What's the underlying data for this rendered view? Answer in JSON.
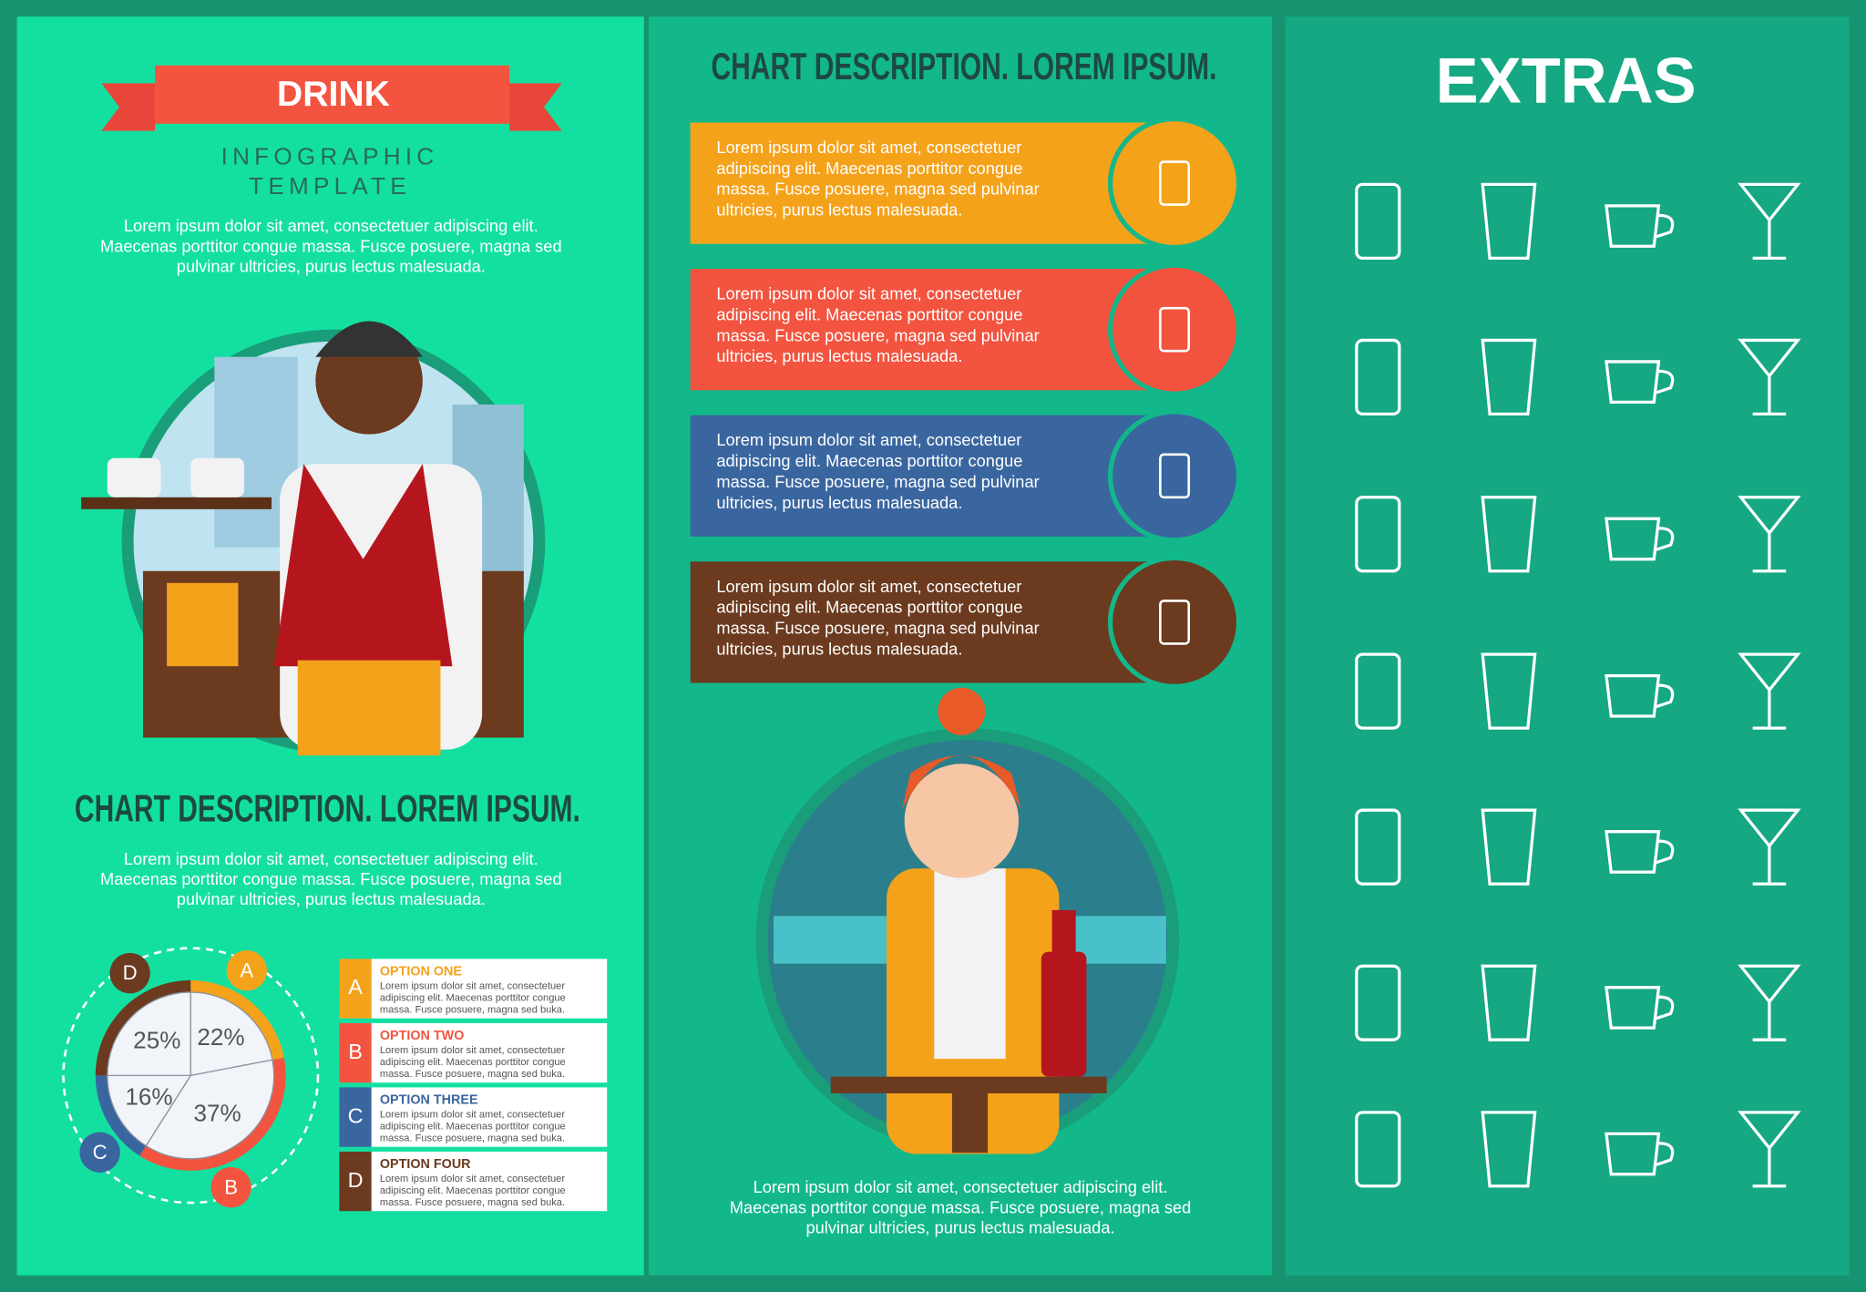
{
  "left": {
    "banner": "DRINK",
    "subtitle": [
      "INFOGRAPHIC",
      "TEMPLATE"
    ],
    "intro": [
      "Lorem ipsum dolor sit amet, consectetuer adipiscing elit.",
      "Maecenas porttitor congue massa. Fusce posuere, magna sed",
      "pulvinar ultricies, purus lectus malesuada."
    ],
    "heading": "CHART DESCRIPTION. LOREM IPSUM.",
    "text": [
      "Lorem ipsum dolor sit amet, consectetuer adipiscing elit.",
      "Maecenas porttitor congue massa. Fusce posuere, magna sed",
      "pulvinar ultricies, purus lectus malesuada."
    ],
    "options": [
      {
        "letter": "A",
        "title": "OPTION ONE",
        "lines": [
          "Lorem ipsum dolor sit amet, consectetuer",
          "adipiscing elit. Maecenas porttitor congue",
          "massa. Fusce posuere, magna sed buka."
        ]
      },
      {
        "letter": "B",
        "title": "OPTION TWO",
        "lines": [
          "Lorem ipsum dolor sit amet, consectetuer",
          "adipiscing elit. Maecenas porttitor congue",
          "massa. Fusce posuere, magna sed buka."
        ]
      },
      {
        "letter": "C",
        "title": "OPTION THREE",
        "lines": [
          "Lorem ipsum dolor sit amet, consectetuer",
          "adipiscing elit. Maecenas porttitor congue",
          "massa. Fusce posuere, magna sed buka."
        ]
      },
      {
        "letter": "D",
        "title": "OPTION FOUR",
        "lines": [
          "Lorem ipsum dolor sit amet, consectetuer",
          "adipiscing elit. Maecenas porttitor congue",
          "massa. Fusce posuere, magna sed buka."
        ]
      }
    ]
  },
  "chart_data": {
    "type": "pie",
    "categories": [
      "A",
      "B",
      "C",
      "D"
    ],
    "values": [
      22,
      37,
      16,
      25
    ],
    "value_labels": [
      "22%",
      "37%",
      "16%",
      "25%"
    ],
    "colors": [
      "#f5a21b",
      "#f2543f",
      "#3a66a0",
      "#6b3a1f"
    ]
  },
  "middle": {
    "heading": "CHART DESCRIPTION. LOREM IPSUM.",
    "cards": [
      {
        "color": "#f5a21b",
        "lines": [
          "Lorem ipsum dolor sit amet, consectetuer",
          "adipiscing elit. Maecenas porttitor congue",
          "massa. Fusce posuere, magna sed pulvinar",
          "ultricies, purus lectus malesuada."
        ]
      },
      {
        "color": "#f2543f",
        "lines": [
          "Lorem ipsum dolor sit amet, consectetuer",
          "adipiscing elit. Maecenas porttitor congue",
          "massa. Fusce posuere, magna sed pulvinar",
          "ultricies, purus lectus malesuada."
        ]
      },
      {
        "color": "#3a66a0",
        "lines": [
          "Lorem ipsum dolor sit amet, consectetuer",
          "adipiscing elit. Maecenas porttitor congue",
          "massa. Fusce posuere, magna sed pulvinar",
          "ultricies, purus lectus malesuada."
        ]
      },
      {
        "color": "#6b3a1f",
        "lines": [
          "Lorem ipsum dolor sit amet, consectetuer",
          "adipiscing elit. Maecenas porttitor congue",
          "massa. Fusce posuere, magna sed pulvinar",
          "ultricies, purus lectus malesuada."
        ]
      }
    ],
    "footer": [
      "Lorem ipsum dolor sit amet, consectetuer adipiscing elit.",
      "Maecenas porttitor congue massa. Fusce posuere, magna sed",
      "pulvinar ultricies, purus lectus malesuada."
    ]
  },
  "right": {
    "title": "EXTRAS"
  }
}
